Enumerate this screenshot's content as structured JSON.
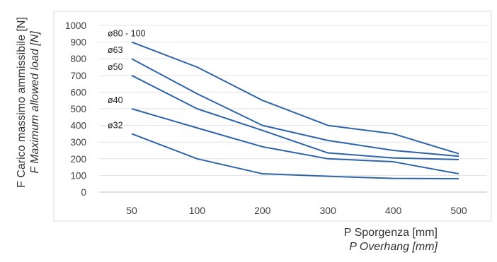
{
  "chart_data": {
    "type": "line",
    "title": "",
    "ylabel": "F Carico massimo ammissibile [N]",
    "ylabel_en": "F Maximum allowed load [N]",
    "xlabel": "P Sporgenza [mm]",
    "xlabel_en": "P Overhang [mm]",
    "categories": [
      "50",
      "100",
      "200",
      "300",
      "400",
      "500"
    ],
    "ylim": [
      0,
      1000
    ],
    "yticks": [
      0,
      100,
      200,
      300,
      400,
      500,
      600,
      700,
      800,
      900,
      1000
    ],
    "grid": "horizontal",
    "legend": "inline labels at line starts",
    "line_color": "#2E64A8",
    "series": [
      {
        "name": "ø80 - 100",
        "values": [
          900,
          750,
          550,
          400,
          350,
          230
        ]
      },
      {
        "name": "ø63",
        "values": [
          800,
          590,
          400,
          310,
          250,
          215
        ]
      },
      {
        "name": "ø50",
        "values": [
          700,
          500,
          370,
          235,
          205,
          195
        ]
      },
      {
        "name": "ø40",
        "values": [
          500,
          385,
          272,
          200,
          182,
          110
        ]
      },
      {
        "name": "ø32",
        "values": [
          350,
          200,
          110,
          95,
          82,
          80
        ]
      }
    ]
  }
}
